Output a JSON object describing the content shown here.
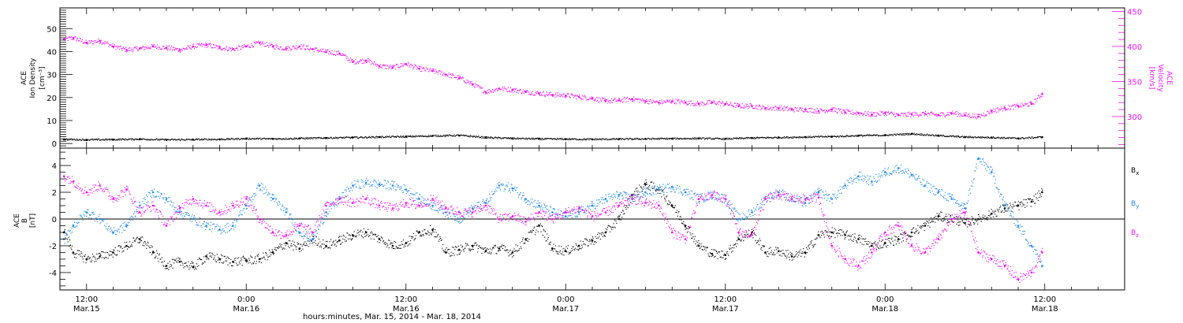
{
  "colors": {
    "black": "#000000",
    "magenta": "#ee11ee",
    "blue": "#1f88e6"
  },
  "x_axis": {
    "title": "hours:minutes, Mar. 15, 2014 - Mar. 18, 2014",
    "ticks": [
      {
        "t": 12,
        "time": "12:00",
        "date": "Mar.15"
      },
      {
        "t": 24,
        "time": "0:00",
        "date": "Mar.16"
      },
      {
        "t": 36,
        "time": "12:00",
        "date": "Mar.16"
      },
      {
        "t": 48,
        "time": "0:00",
        "date": "Mar.17"
      },
      {
        "t": 60,
        "time": "12:00",
        "date": "Mar.17"
      },
      {
        "t": 72,
        "time": "0:00",
        "date": "Mar.18"
      },
      {
        "t": 84,
        "time": "12:00",
        "date": "Mar.18"
      }
    ]
  },
  "panel_top": {
    "left_label_1": "ACE",
    "left_label_2": "Ion Density",
    "left_label_3": "[cm⁻³]",
    "right_label_1": "ACE",
    "right_label_2": "Velocity",
    "right_label_3": "[km/s]"
  },
  "panel_bottom": {
    "label_1": "ACE",
    "label_2": "B",
    "label_3": "[nT]",
    "legend": [
      {
        "name": "Bx",
        "base": "B",
        "sub": "x",
        "color": "#000000"
      },
      {
        "name": "By",
        "base": "B",
        "sub": "y",
        "color": "#1f88e6"
      },
      {
        "name": "Bz",
        "base": "B",
        "sub": "z",
        "color": "#ee11ee"
      }
    ]
  },
  "chart_data": [
    {
      "type": "scatter",
      "title": "",
      "xlabel": "hours:minutes, Mar. 15, 2014 - Mar. 18, 2014",
      "x_units": "hours since 2014-03-15 00:00",
      "xlim": [
        10,
        90
      ],
      "y_left": {
        "label": "ACE Ion Density [cm-3]",
        "ylim": [
          -2,
          59
        ],
        "ticks": [
          0,
          10,
          20,
          30,
          40,
          50
        ]
      },
      "y_right": {
        "label": "ACE Velocity [km/s]",
        "ylim": [
          255,
          455
        ],
        "ticks": [
          300,
          350,
          400,
          450
        ]
      },
      "series": [
        {
          "name": "Velocity",
          "axis": "right",
          "color": "#ee11ee",
          "x": [
            10.3,
            11,
            12,
            13,
            14,
            15,
            16,
            17,
            18,
            19,
            20,
            21,
            22,
            23,
            24,
            25,
            26,
            27,
            28,
            29,
            30,
            31,
            32,
            33,
            34,
            35,
            36,
            37,
            38,
            39,
            40,
            41,
            42,
            43,
            44,
            45,
            46,
            47,
            48,
            49,
            50,
            51,
            52,
            53,
            54,
            55,
            56,
            57,
            58,
            59,
            60,
            61,
            62,
            63,
            64,
            65,
            66,
            67,
            68,
            69,
            70,
            71,
            72,
            73,
            74,
            75,
            76,
            77,
            78,
            79,
            80,
            81,
            82,
            83,
            83.8
          ],
          "y": [
            410,
            412,
            405,
            408,
            400,
            395,
            397,
            400,
            398,
            395,
            400,
            402,
            398,
            396,
            400,
            405,
            400,
            397,
            400,
            396,
            392,
            390,
            378,
            380,
            372,
            370,
            375,
            368,
            365,
            360,
            355,
            346,
            335,
            340,
            338,
            335,
            333,
            331,
            330,
            328,
            326,
            322,
            323,
            325,
            322,
            320,
            322,
            320,
            318,
            320,
            318,
            315,
            315,
            312,
            312,
            310,
            310,
            308,
            310,
            306,
            305,
            303,
            305,
            302,
            303,
            304,
            302,
            305,
            302,
            300,
            308,
            312,
            315,
            318,
            332
          ]
        },
        {
          "name": "Ion Density",
          "axis": "left",
          "color": "#000000",
          "x": [
            10.3,
            12,
            14,
            16,
            18,
            20,
            22,
            24,
            26,
            28,
            30,
            32,
            34,
            36,
            38,
            40,
            42,
            44,
            46,
            48,
            50,
            52,
            54,
            56,
            58,
            60,
            62,
            64,
            66,
            68,
            70,
            72,
            74,
            76,
            78,
            80,
            82,
            83.8
          ],
          "y": [
            1.8,
            1.6,
            1.7,
            1.9,
            1.6,
            1.7,
            1.8,
            2.1,
            2.0,
            2.2,
            2.4,
            2.6,
            2.8,
            3.0,
            3.3,
            3.5,
            2.6,
            2.2,
            2.0,
            1.9,
            1.8,
            1.9,
            2.0,
            2.1,
            2.2,
            2.0,
            2.4,
            2.6,
            2.8,
            3.0,
            3.4,
            3.6,
            4.2,
            3.4,
            2.8,
            2.6,
            2.2,
            2.8
          ]
        }
      ]
    },
    {
      "type": "scatter",
      "title": "",
      "xlabel": "hours:minutes, Mar. 15, 2014 - Mar. 18, 2014",
      "x_units": "hours since 2014-03-15 00:00",
      "xlim": [
        10,
        90
      ],
      "ylabel": "ACE B [nT]",
      "ylim": [
        -5.3,
        5.3
      ],
      "yticks": [
        -4,
        -2,
        0,
        2,
        4
      ],
      "zero_line": true,
      "series": [
        {
          "name": "Bx",
          "color": "#000000",
          "x": [
            10.3,
            11,
            12,
            13,
            14,
            15,
            16,
            17,
            18,
            19,
            20,
            21,
            22,
            23,
            24,
            25,
            26,
            27,
            28,
            29,
            30,
            31,
            32,
            33,
            34,
            35,
            36,
            37,
            38,
            39,
            40,
            41,
            42,
            43,
            44,
            45,
            46,
            47,
            48,
            49,
            50,
            51,
            52,
            53,
            54,
            55,
            56,
            57,
            58,
            59,
            60,
            61,
            62,
            63,
            64,
            65,
            66,
            67,
            68,
            69,
            70,
            71,
            72,
            73,
            74,
            75,
            76,
            77,
            78,
            79,
            80,
            81,
            82,
            83,
            83.8
          ],
          "y": [
            -1.0,
            -2.5,
            -3.0,
            -2.8,
            -2.5,
            -2.0,
            -1.5,
            -2.5,
            -3.5,
            -3.2,
            -3.6,
            -2.8,
            -3.0,
            -3.2,
            -3.1,
            -3.0,
            -2.5,
            -1.8,
            -2.2,
            -1.5,
            -2.0,
            -1.6,
            -1.2,
            -1.0,
            -1.5,
            -2.0,
            -1.8,
            -1.0,
            -0.8,
            -2.5,
            -2.3,
            -2.0,
            -2.4,
            -2.2,
            -2.5,
            -1.5,
            -0.5,
            -2.2,
            -2.4,
            -2.0,
            -1.6,
            -1.0,
            0.0,
            1.8,
            2.6,
            2.2,
            1.0,
            -0.5,
            -2.0,
            -2.6,
            -2.7,
            -1.5,
            -1.0,
            -2.5,
            -2.4,
            -2.8,
            -2.5,
            -1.2,
            -1.0,
            -1.2,
            -1.5,
            -2.0,
            -1.8,
            -1.5,
            -1.0,
            -0.5,
            0.2,
            0.0,
            -0.3,
            0.0,
            0.4,
            0.8,
            1.0,
            1.3,
            2.0
          ]
        },
        {
          "name": "By",
          "color": "#1f88e6",
          "x": [
            10.3,
            11,
            12,
            13,
            14,
            15,
            16,
            17,
            18,
            19,
            20,
            21,
            22,
            23,
            24,
            25,
            26,
            27,
            28,
            29,
            30,
            31,
            32,
            33,
            34,
            35,
            36,
            37,
            38,
            39,
            40,
            41,
            42,
            43,
            44,
            45,
            46,
            47,
            48,
            49,
            50,
            51,
            52,
            53,
            54,
            55,
            56,
            57,
            58,
            59,
            60,
            61,
            62,
            63,
            64,
            65,
            66,
            67,
            68,
            69,
            70,
            71,
            72,
            73,
            74,
            75,
            76,
            77,
            78,
            79,
            80,
            81,
            82,
            83,
            83.8
          ],
          "y": [
            -1.5,
            -0.5,
            0.5,
            0.0,
            -1.0,
            -0.5,
            1.0,
            2.0,
            1.5,
            0.5,
            0.0,
            -0.5,
            -0.8,
            -0.5,
            1.0,
            2.5,
            1.5,
            0.5,
            -1.0,
            -1.5,
            0.5,
            1.5,
            2.5,
            2.7,
            2.6,
            2.5,
            2.2,
            1.5,
            1.0,
            0.5,
            0.0,
            0.8,
            1.2,
            2.5,
            2.3,
            1.5,
            1.0,
            0.5,
            0.2,
            0.5,
            1.0,
            1.5,
            1.8,
            1.5,
            2.0,
            2.2,
            2.4,
            2.0,
            1.5,
            1.8,
            1.5,
            0.0,
            0.5,
            1.5,
            2.0,
            1.5,
            1.2,
            2.0,
            1.5,
            2.5,
            3.2,
            2.8,
            3.5,
            3.8,
            3.3,
            2.5,
            2.0,
            1.5,
            0.8,
            4.5,
            3.5,
            1.0,
            -0.5,
            -2.0,
            -3.5
          ]
        },
        {
          "name": "Bz",
          "color": "#ee11ee",
          "x": [
            10.3,
            11,
            12,
            13,
            14,
            15,
            16,
            17,
            18,
            19,
            20,
            21,
            22,
            23,
            24,
            25,
            26,
            27,
            28,
            29,
            30,
            31,
            32,
            33,
            34,
            35,
            36,
            37,
            38,
            39,
            40,
            41,
            42,
            43,
            44,
            45,
            46,
            47,
            48,
            49,
            50,
            51,
            52,
            53,
            54,
            55,
            56,
            57,
            58,
            59,
            60,
            61,
            62,
            63,
            64,
            65,
            66,
            67,
            68,
            69,
            70,
            71,
            72,
            73,
            74,
            75,
            76,
            77,
            78,
            79,
            80,
            81,
            82,
            83,
            83.8
          ],
          "y": [
            3.2,
            2.8,
            2.0,
            2.5,
            1.5,
            2.2,
            0.5,
            1.0,
            -0.5,
            0.8,
            1.5,
            1.0,
            0.5,
            1.0,
            1.5,
            0.0,
            -1.0,
            -1.2,
            -0.5,
            -1.0,
            1.0,
            1.5,
            1.2,
            1.5,
            1.0,
            0.8,
            1.2,
            1.0,
            1.5,
            0.8,
            0.5,
            0.5,
            1.0,
            0.0,
            0.2,
            -0.2,
            0.5,
            0.0,
            0.5,
            0.8,
            0.2,
            0.5,
            1.0,
            1.5,
            1.2,
            1.0,
            -1.0,
            -1.5,
            1.5,
            1.8,
            1.5,
            -1.0,
            -1.2,
            1.5,
            1.8,
            1.5,
            1.5,
            1.6,
            -2.0,
            -3.0,
            -3.5,
            -2.5,
            -1.0,
            -0.5,
            -2.0,
            -2.5,
            -1.5,
            0.0,
            0.5,
            -2.5,
            -3.0,
            -3.5,
            -4.5,
            -4.0,
            -2.5
          ]
        }
      ]
    }
  ]
}
